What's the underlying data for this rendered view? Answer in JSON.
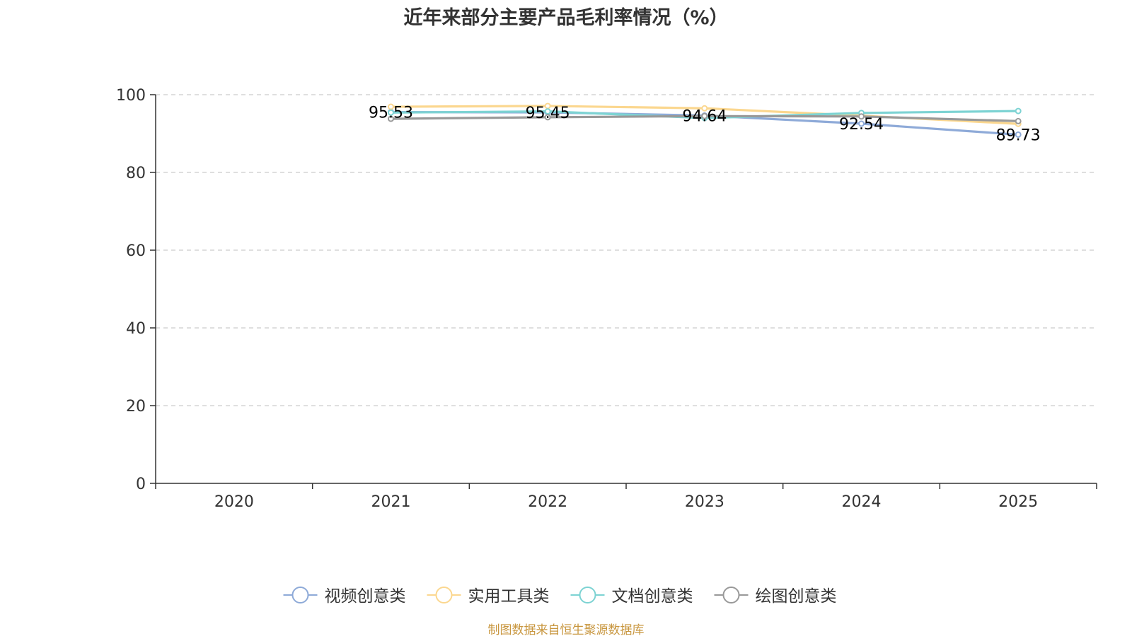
{
  "chart_data": {
    "type": "line",
    "title": "近年来部分主要产品毛利率情况（%）",
    "categories": [
      "2020",
      "2021",
      "2022",
      "2023",
      "2024",
      "2025"
    ],
    "y_ticks": [
      "0",
      "20",
      "40",
      "60",
      "80",
      "100"
    ],
    "ylim": [
      0,
      100
    ],
    "grid": true,
    "legend_position": "bottom",
    "series": [
      {
        "name": "视频创意类",
        "color": "#8eaad8",
        "values": [
          null,
          95.53,
          95.45,
          94.64,
          92.54,
          89.73
        ],
        "labels": [
          "",
          "95.53",
          "95.45",
          "94.64",
          "92.54",
          "89.73"
        ]
      },
      {
        "name": "实用工具类",
        "color": "#fbd78f",
        "values": [
          null,
          96.9,
          97.1,
          96.5,
          94.6,
          92.5
        ],
        "labels": [
          "",
          "",
          "",
          "",
          "",
          ""
        ]
      },
      {
        "name": "文档创意类",
        "color": "#7dd3d3",
        "values": [
          null,
          95.4,
          95.7,
          94.0,
          95.3,
          95.8
        ],
        "labels": [
          "",
          "",
          "",
          "",
          "",
          ""
        ]
      },
      {
        "name": "绘图创意类",
        "color": "#999999",
        "values": [
          null,
          93.8,
          94.2,
          94.5,
          94.4,
          93.2
        ],
        "labels": [
          "",
          "",
          "",
          "",
          "",
          ""
        ]
      }
    ]
  },
  "source": "制图数据来自恒生聚源数据库"
}
